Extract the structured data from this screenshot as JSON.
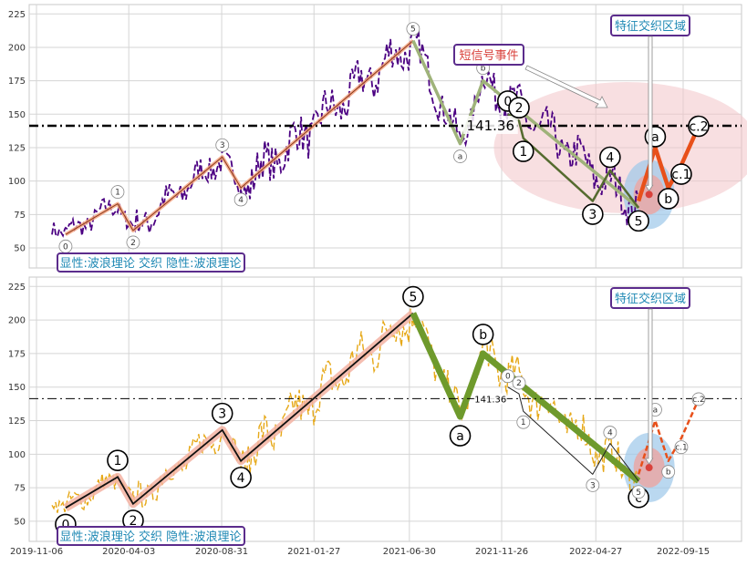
{
  "chart_data": [
    {
      "type": "line",
      "panel": "top",
      "title": "",
      "xlabel": "",
      "ylabel": "",
      "ylim": [
        35,
        232
      ],
      "yticks": [
        50,
        75,
        100,
        125,
        150,
        175,
        200,
        225
      ],
      "grid": true,
      "price_color": "#4b0082",
      "level": {
        "value": 141.36,
        "label": "141.36"
      },
      "info_box": "显性:波浪理论 交织 隐性:波浪理论",
      "feature_box": "特征交织区域",
      "signal_box": "短信号事件",
      "impulse_wave": {
        "x": [
          "2019-12-23",
          "2020-03-16",
          "2020-04-10",
          "2020-09-01",
          "2020-10-01",
          "2021-07-06"
        ],
        "y": [
          60,
          83,
          63,
          118,
          95,
          205
        ],
        "labels": [
          "0",
          "1",
          "2",
          "3",
          "4",
          "5"
        ]
      },
      "correction_wave": {
        "x": [
          "2021-07-06",
          "2021-09-20",
          "2021-10-27",
          "2022-07-05"
        ],
        "y": [
          205,
          128,
          175,
          80
        ],
        "labels": [
          "5",
          "a",
          "b",
          "c"
        ]
      },
      "sub_wave": {
        "x": [
          "2021-12-06",
          "2021-12-24",
          "2021-12-31",
          "2022-04-22",
          "2022-05-20",
          "2022-07-05"
        ],
        "y": [
          150,
          145,
          132,
          85,
          108,
          80
        ],
        "labels": [
          "0",
          "2",
          "1",
          "3",
          "4",
          "5"
        ]
      },
      "projection": {
        "x": [
          "2022-07-05",
          "2022-08-01",
          "2022-08-22",
          "2022-09-12",
          "2022-10-10"
        ],
        "y": [
          85,
          125,
          95,
          112,
          141
        ],
        "labels": [
          "",
          "a",
          "b",
          "c.1",
          "c.2"
        ]
      }
    },
    {
      "type": "line",
      "panel": "bottom",
      "title": "",
      "xlabel": "",
      "ylabel": "",
      "ylim": [
        35,
        232
      ],
      "yticks": [
        50,
        75,
        100,
        125,
        150,
        175,
        200,
        225
      ],
      "grid": true,
      "price_color": "#e6a817",
      "level": {
        "value": 141.36,
        "label": "141.36"
      },
      "info_box": "显性:波浪理论 交织 隐性:波浪理论",
      "feature_box": "特征交织区域",
      "x_tick_labels": [
        "2019-11-06",
        "2020-04-03",
        "2020-08-31",
        "2021-01-27",
        "2021-06-30",
        "2021-11-26",
        "2022-04-27",
        "2022-09-15"
      ],
      "impulse_wave": {
        "x": [
          "2019-12-23",
          "2020-03-16",
          "2020-04-10",
          "2020-09-01",
          "2020-10-01",
          "2021-07-06"
        ],
        "y": [
          60,
          83,
          63,
          118,
          95,
          205
        ],
        "labels": [
          "0",
          "1",
          "2",
          "3",
          "4",
          "5"
        ]
      },
      "correction_wave": {
        "x": [
          "2021-07-06",
          "2021-09-20",
          "2021-10-27",
          "2022-07-05"
        ],
        "y": [
          205,
          128,
          175,
          80
        ],
        "labels": [
          "5",
          "a",
          "b",
          "c"
        ]
      },
      "sub_wave": {
        "x": [
          "2021-12-06",
          "2021-12-24",
          "2021-12-31",
          "2022-04-22",
          "2022-05-20",
          "2022-07-05"
        ],
        "y": [
          150,
          145,
          132,
          85,
          108,
          80
        ],
        "labels": [
          "0",
          "2",
          "1",
          "3",
          "4",
          "5"
        ]
      },
      "projection": {
        "x": [
          "2022-07-05",
          "2022-08-01",
          "2022-08-22",
          "2022-09-12",
          "2022-10-10"
        ],
        "y": [
          85,
          125,
          95,
          112,
          141
        ],
        "labels": [
          "",
          "a",
          "b",
          "c.1",
          "c.2"
        ]
      }
    }
  ]
}
